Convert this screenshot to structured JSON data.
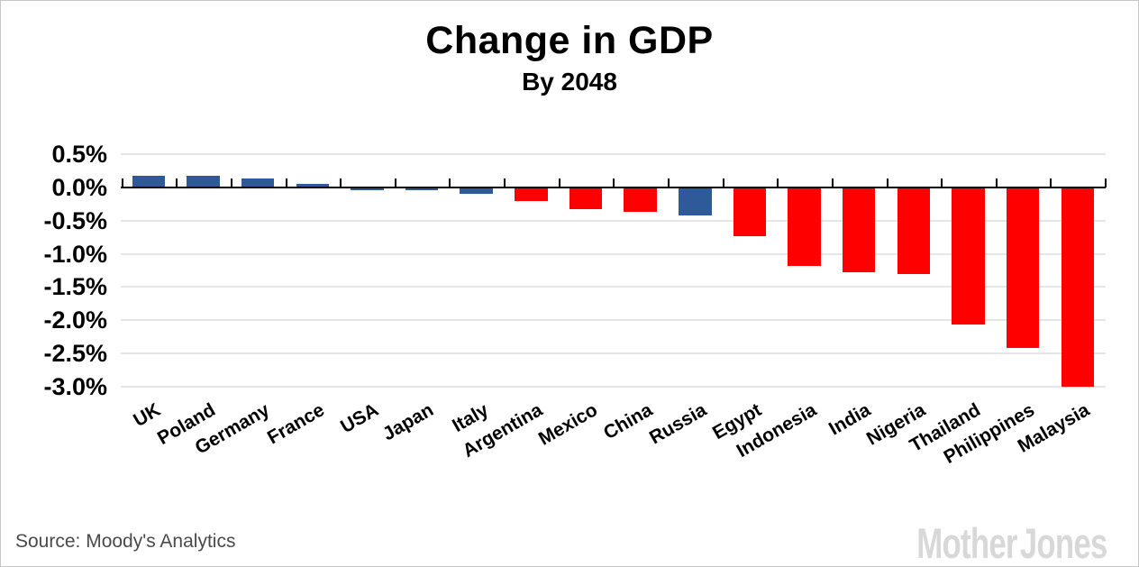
{
  "header": {
    "title": "Change in GDP",
    "subtitle": "By 2048"
  },
  "footer": {
    "source_text": "Source: Moody's Analytics",
    "brand": "Mother Jones"
  },
  "palette": {
    "blue": "#2E5A9A",
    "red": "#FE0000",
    "gridline": "#E6E6E6",
    "axis": "#000000"
  },
  "chart_data": {
    "type": "bar",
    "title": "Change in GDP",
    "subtitle": "By 2048",
    "unit": "%",
    "categories": [
      "UK",
      "Poland",
      "Germany",
      "France",
      "USA",
      "Japan",
      "Italy",
      "Argentina",
      "Mexico",
      "China",
      "Russia",
      "Egypt",
      "Indonesia",
      "India",
      "Nigeria",
      "Thailand",
      "Philippines",
      "Malaysia"
    ],
    "values": [
      0.18,
      0.18,
      0.13,
      0.05,
      -0.05,
      -0.05,
      -0.1,
      -0.21,
      -0.33,
      -0.37,
      -0.43,
      -0.73,
      -1.18,
      -1.28,
      -1.3,
      -2.06,
      -2.42,
      -3.0
    ],
    "bar_colors": [
      "blue",
      "blue",
      "blue",
      "blue",
      "blue",
      "blue",
      "blue",
      "red",
      "red",
      "red",
      "blue",
      "red",
      "red",
      "red",
      "red",
      "red",
      "red",
      "red"
    ],
    "ytick_labels": [
      "0.5%",
      "0.0%",
      "-0.5%",
      "-1.0%",
      "-1.5%",
      "-2.0%",
      "-2.5%",
      "-3.0%"
    ],
    "ytick_values": [
      0.5,
      0.0,
      -0.5,
      -1.0,
      -1.5,
      -2.0,
      -2.5,
      -3.0
    ],
    "ylim": [
      -3.0,
      0.5
    ],
    "grid": true,
    "legend": false,
    "xlabel": "",
    "ylabel": ""
  }
}
